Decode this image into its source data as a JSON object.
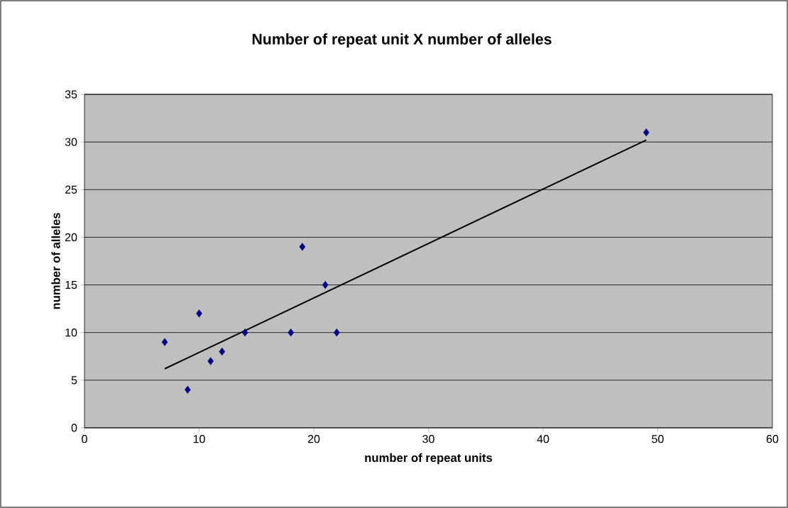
{
  "chart_data": {
    "type": "scatter",
    "title": "Number of repeat unit X number of alleles",
    "xlabel": "number of repeat units",
    "ylabel": "number of alleles",
    "series": [
      {
        "color": "#000080",
        "marker": "diamond",
        "x": [
          7,
          9,
          10,
          11,
          12,
          14,
          18,
          19,
          21,
          22,
          49
        ],
        "values": [
          9,
          4,
          12,
          7,
          8,
          10,
          10,
          19,
          15,
          10,
          31
        ]
      },
      {
        "type": "line",
        "color": "#000000",
        "marker": "none",
        "x": [
          7,
          49
        ],
        "values": [
          6.2,
          30.2
        ]
      }
    ],
    "grid": "y",
    "xlim": [
      0,
      60
    ],
    "xticks": [
      0,
      10,
      20,
      30,
      40,
      50,
      60
    ],
    "ylim": [
      0,
      35
    ],
    "yticks": [
      0,
      5,
      10,
      15,
      20,
      25,
      30,
      35
    ]
  }
}
